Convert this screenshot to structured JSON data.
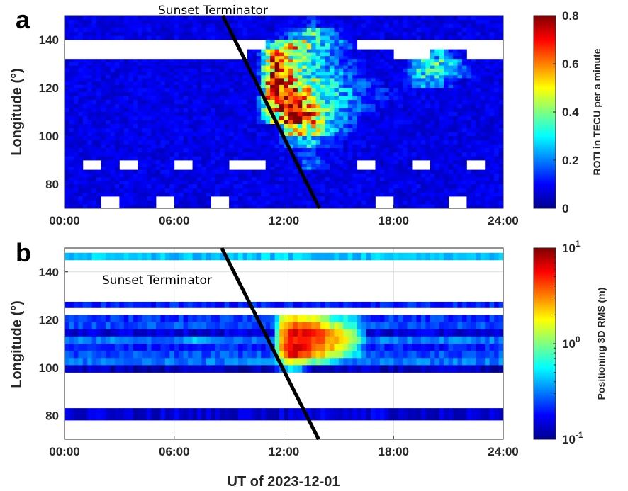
{
  "chart_data": [
    {
      "panel": "a",
      "type": "heatmap",
      "xlabel": "",
      "ylabel": "Longitude (°)",
      "xlim": [
        0,
        24
      ],
      "ylim": [
        70,
        150
      ],
      "xticks": [
        0,
        6,
        12,
        18,
        24
      ],
      "xtick_labels": [
        "00:00",
        "06:00",
        "12:00",
        "18:00",
        "24:00"
      ],
      "yticks": [
        80,
        100,
        120,
        140
      ],
      "ytick_labels": [
        "80",
        "100",
        "120",
        "140"
      ],
      "colorbar": {
        "label": "ROTI in TECU per a minute",
        "scale": "linear",
        "range": [
          0,
          0.8
        ],
        "ticks": [
          0,
          0.2,
          0.4,
          0.6,
          0.8
        ],
        "tick_labels": [
          "0",
          "0.2",
          "0.4",
          "0.6",
          "0.8"
        ],
        "colormap": "jet"
      },
      "annotation": "Sunset Terminator",
      "terminator": [
        [
          8.65,
          150
        ],
        [
          13.95,
          70
        ]
      ],
      "baseline": 0.08,
      "rows": [
        {
          "lon": [
            145,
            150
          ],
          "peaks": {
            "13": 0.15
          }
        },
        {
          "lon": [
            140,
            145
          ],
          "peaks": {
            "12": 0.2,
            "13": 0.35,
            "14": 0.2
          }
        },
        {
          "lon": [
            136,
            140
          ],
          "missing_hours": [
            0,
            1,
            2,
            3,
            4,
            5,
            6,
            7,
            8,
            9,
            10,
            16,
            17,
            18,
            19,
            20,
            21,
            22,
            23
          ],
          "peaks": {
            "11": 0.3,
            "12": 0.55,
            "13": 0.35,
            "14": 0.25,
            "15": 0.15
          }
        },
        {
          "lon": [
            132,
            136
          ],
          "missing_hours": [
            0,
            1,
            2,
            3,
            4,
            5,
            6,
            7,
            8,
            9,
            18,
            19,
            22,
            23
          ],
          "peaks": {
            "11": 0.6,
            "12": 0.4,
            "13": 0.3,
            "14": 0.2,
            "20": 0.25
          }
        },
        {
          "lon": [
            128,
            132
          ],
          "peaks": {
            "11": 0.7,
            "12": 0.45,
            "13": 0.3,
            "14": 0.2,
            "15": 0.15,
            "19": 0.3,
            "20": 0.35,
            "21": 0.2
          }
        },
        {
          "lon": [
            124,
            128
          ],
          "peaks": {
            "11": 0.75,
            "12": 0.5,
            "13": 0.3,
            "14": 0.25,
            "15": 0.18,
            "19": 0.3,
            "20": 0.3,
            "21": 0.2
          }
        },
        {
          "lon": [
            120,
            124
          ],
          "peaks": {
            "11": 0.8,
            "12": 0.55,
            "13": 0.4,
            "14": 0.28,
            "15": 0.2,
            "16": 0.15,
            "19": 0.22,
            "20": 0.22
          }
        },
        {
          "lon": [
            115,
            120
          ],
          "peaks": {
            "11": 0.8,
            "12": 0.6,
            "13": 0.45,
            "14": 0.3,
            "15": 0.22,
            "16": 0.16,
            "17": 0.12
          }
        },
        {
          "lon": [
            110,
            115
          ],
          "peaks": {
            "11": 0.65,
            "12": 0.75,
            "13": 0.5,
            "14": 0.32,
            "15": 0.2,
            "16": 0.15
          }
        },
        {
          "lon": [
            105,
            110
          ],
          "peaks": {
            "11": 0.45,
            "12": 0.8,
            "13": 0.65,
            "14": 0.3,
            "15": 0.2
          }
        },
        {
          "lon": [
            100,
            105
          ],
          "peaks": {
            "12": 0.5,
            "13": 0.5,
            "14": 0.25,
            "15": 0.15
          }
        },
        {
          "lon": [
            95,
            100
          ],
          "peaks": {
            "12": 0.2,
            "13": 0.28,
            "14": 0.15
          }
        },
        {
          "lon": [
            90,
            95
          ],
          "peaks": {
            "12": 0.12,
            "13": 0.15
          }
        },
        {
          "lon": [
            86,
            90
          ],
          "missing_hours": [
            1,
            3,
            6,
            9,
            10,
            16,
            19,
            22
          ],
          "peaks": {
            "13": 0.2
          }
        },
        {
          "lon": [
            80,
            86
          ],
          "peaks": {}
        },
        {
          "lon": [
            75,
            80
          ],
          "peaks": {}
        },
        {
          "lon": [
            70,
            75
          ],
          "missing_hours": [
            2,
            5,
            8,
            17,
            21
          ],
          "peaks": {}
        }
      ]
    },
    {
      "panel": "b",
      "type": "heatmap",
      "xlabel": "UT of 2023-12-01",
      "ylabel": "Longitude (°)",
      "xlim": [
        0,
        24
      ],
      "ylim": [
        70,
        150
      ],
      "xticks": [
        0,
        6,
        12,
        18,
        24
      ],
      "xtick_labels": [
        "00:00",
        "06:00",
        "12:00",
        "18:00",
        "24:00"
      ],
      "yticks": [
        80,
        100,
        120,
        140
      ],
      "ytick_labels": [
        "80",
        "100",
        "120",
        "140"
      ],
      "grid": true,
      "colorbar": {
        "label": "Positioning 3D RMS (m)",
        "scale": "log",
        "range": [
          0.1,
          10
        ],
        "ticks": [
          0.1,
          1,
          10
        ],
        "tick_labels": [
          [
            "10",
            "-1"
          ],
          [
            "10",
            "0"
          ],
          [
            "10",
            "1"
          ]
        ],
        "colormap": "jet"
      },
      "annotation": "Sunset Terminator",
      "terminator": [
        [
          8.6,
          150
        ],
        [
          13.9,
          70
        ]
      ],
      "rows": [
        {
          "lon": [
            145,
            148
          ],
          "baseline": 0.45,
          "peaks": {}
        },
        {
          "lon": [
            125,
            127.5
          ],
          "baseline": 0.2,
          "peaks": {}
        },
        {
          "lon": [
            119,
            122
          ],
          "baseline": 0.22,
          "peaks": {
            "12": 2.5,
            "13": 1.5,
            "14": 0.8,
            "15": 0.5
          }
        },
        {
          "lon": [
            116,
            119
          ],
          "baseline": 0.25,
          "peaks": {
            "12": 4,
            "13": 3,
            "14": 1.5,
            "15": 0.8
          }
        },
        {
          "lon": [
            113,
            116
          ],
          "baseline": 0.15,
          "peaks": {
            "12": 6,
            "13": 5,
            "14": 3,
            "15": 1.2
          }
        },
        {
          "lon": [
            110,
            113
          ],
          "baseline": 0.3,
          "peaks": {
            "7": 0.5,
            "12": 5,
            "13": 4,
            "14": 3,
            "15": 1.5
          }
        },
        {
          "lon": [
            107,
            110
          ],
          "baseline": 0.2,
          "peaks": {
            "12": 7,
            "13": 4,
            "14": 2.5,
            "15": 1
          }
        },
        {
          "lon": [
            104,
            107
          ],
          "baseline": 0.25,
          "peaks": {
            "12": 6,
            "13": 3,
            "14": 1.5,
            "15": 0.7
          }
        },
        {
          "lon": [
            101,
            104
          ],
          "baseline": 0.3,
          "peaks": {
            "12": 1.8,
            "13": 1,
            "14": 0.6
          }
        },
        {
          "lon": [
            98,
            101
          ],
          "baseline": 0.13,
          "peaks": {
            "12": 0.5
          }
        },
        {
          "lon": [
            78,
            83
          ],
          "baseline": 0.15,
          "peaks": {}
        }
      ]
    }
  ],
  "panel_labels": [
    "a",
    "b"
  ]
}
